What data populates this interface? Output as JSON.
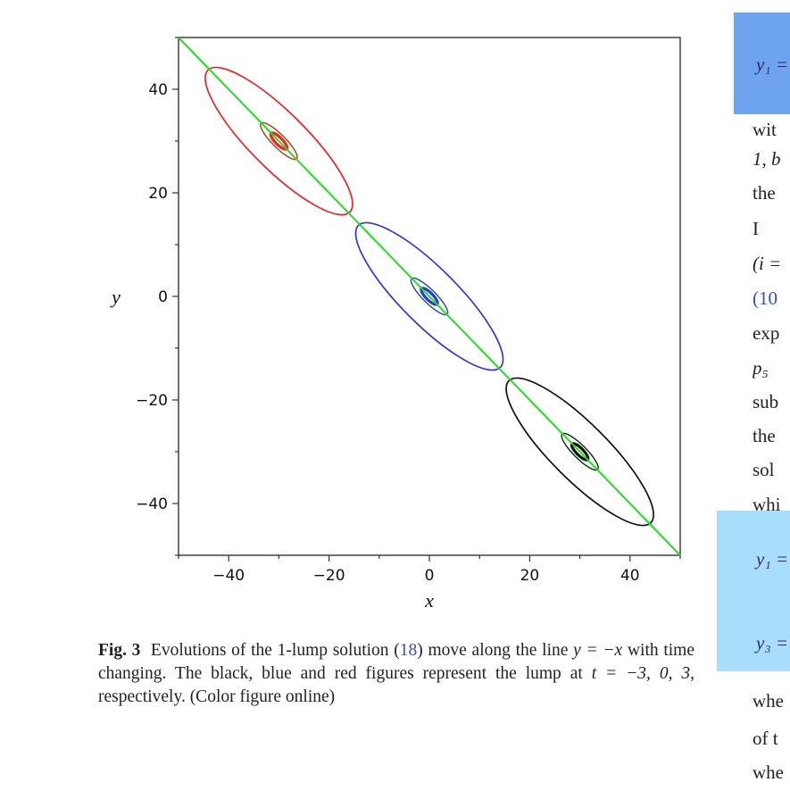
{
  "chart_data": {
    "type": "line",
    "xlabel": "x",
    "ylabel": "y",
    "xlim": [
      -50,
      50
    ],
    "ylim": [
      -50,
      50
    ],
    "x_ticks": [
      -40,
      -20,
      0,
      20,
      40
    ],
    "y_ticks": [
      40,
      20,
      0,
      -20,
      -40
    ],
    "x_tick_labels": [
      "-40",
      "-20",
      "0",
      "20",
      "40"
    ],
    "y_tick_labels": [
      "40",
      "20",
      "0",
      "-20",
      "-40"
    ],
    "grid": false,
    "line": {
      "equation": "y = -x",
      "x": [
        -50,
        50
      ],
      "y": [
        50,
        -50
      ],
      "color": "#22dd22"
    },
    "series": [
      {
        "t": 3,
        "color": "#ee2222",
        "outer": {
          "center": [
            -30,
            30
          ],
          "semi_major": 20,
          "semi_minor": 5.6
        },
        "inner": {
          "center": [
            -30,
            30
          ],
          "semi_major": 5,
          "semi_minor": 1.3
        },
        "core": {
          "center": [
            -30,
            30
          ],
          "semi_major": 2.2,
          "semi_minor": 0.7
        }
      },
      {
        "t": 0,
        "color": "#3333dd",
        "outer": {
          "center": [
            0,
            0
          ],
          "semi_major": 20,
          "semi_minor": 5.6
        },
        "inner": {
          "center": [
            0,
            0
          ],
          "semi_major": 5,
          "semi_minor": 1.3
        },
        "core": {
          "center": [
            0,
            0
          ],
          "semi_major": 2.2,
          "semi_minor": 0.7
        }
      },
      {
        "t": -3,
        "color": "#111111",
        "outer": {
          "center": [
            30,
            -30
          ],
          "semi_major": 20,
          "semi_minor": 5.6
        },
        "inner": {
          "center": [
            30,
            -30
          ],
          "semi_major": 5,
          "semi_minor": 1.3
        },
        "core": {
          "center": [
            30,
            -30
          ],
          "semi_major": 2.2,
          "semi_minor": 0.7
        }
      }
    ],
    "inner_ring_color": "#33aa33"
  },
  "caption": {
    "label": "Fig. 3",
    "part1": "Evolutions of the 1-lump solution (",
    "ref": "18",
    "part2": ") move along the line ",
    "math_eq": "y = −x",
    "part3": " with time changing. The black, blue and red figures represent the lump at ",
    "math_t": "t = −3, 0, 3",
    "part4": ", respectively. (Color figure online)"
  },
  "right_column": {
    "eq1": "y₁ =",
    "eq2": "y₁ =",
    "eq3": "y₃ =",
    "lines_top": [
      "wit",
      "1, b",
      "the",
      "  I",
      "(i =",
      "(10",
      "exp",
      "p₅",
      "sub",
      "the",
      "sol",
      "whi"
    ],
    "lines_bottom": [
      "whe",
      "of t",
      "whe"
    ]
  }
}
